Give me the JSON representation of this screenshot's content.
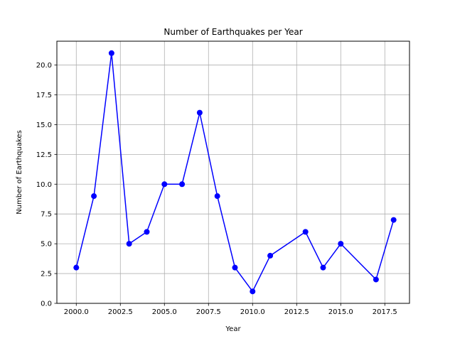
{
  "chart_data": {
    "type": "line",
    "title": "Number of Earthquakes per Year",
    "xlabel": "Year",
    "ylabel": "Number of Earthquakes",
    "xlim": [
      1998.9,
      2018.9
    ],
    "ylim": [
      0,
      22
    ],
    "xticks": [
      2000,
      2002.5,
      2005,
      2007.5,
      2010,
      2012.5,
      2015,
      2017.5
    ],
    "xtick_labels": [
      "2000.0",
      "2002.5",
      "2005.0",
      "2007.5",
      "2010.0",
      "2012.5",
      "2015.0",
      "2017.5"
    ],
    "yticks": [
      0,
      2.5,
      5,
      7.5,
      10,
      12.5,
      15,
      17.5,
      20
    ],
    "ytick_labels": [
      "0.0",
      "2.5",
      "5.0",
      "7.5",
      "10.0",
      "12.5",
      "15.0",
      "17.5",
      "20.0"
    ],
    "grid": true,
    "series": [
      {
        "color": "#0000ff",
        "marker": "circle",
        "x": [
          2000,
          2001,
          2002,
          2003,
          2004,
          2005,
          2006,
          2007,
          2008,
          2009,
          2010,
          2011,
          2013,
          2014,
          2015,
          2017,
          2018
        ],
        "y": [
          3,
          9,
          21,
          5,
          6,
          10,
          10,
          16,
          9,
          3,
          1,
          4,
          6,
          3,
          5,
          2,
          7
        ]
      }
    ]
  }
}
